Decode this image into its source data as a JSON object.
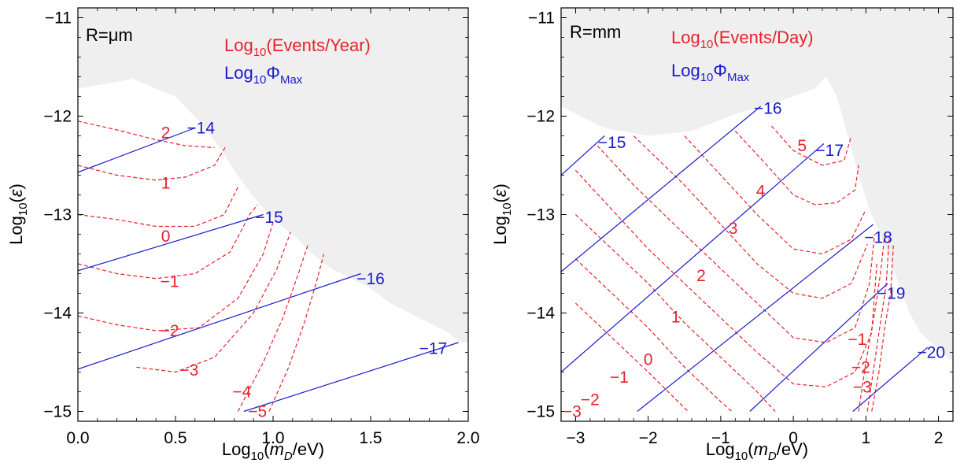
{
  "colors": {
    "events": "#e8212a",
    "phi": "#1a1acf",
    "excluded": "#efefef",
    "axis": "#000000"
  },
  "chart_data": [
    {
      "type": "contour",
      "panel_label": "R=μm",
      "xlabel": "Log₁₀(m_D/eV)",
      "ylabel": "Log₁₀(ε)",
      "xlim": [
        0.0,
        2.0
      ],
      "ylim": [
        -15.1,
        -10.9
      ],
      "xticks": [
        0.0,
        0.5,
        1.0,
        1.5,
        2.0
      ],
      "xtick_labels": [
        "0.0",
        "0.5",
        "1.0",
        "1.5",
        "2.0"
      ],
      "yticks": [
        -15,
        -14,
        -13,
        -12,
        -11
      ],
      "ytick_labels": [
        "−15",
        "−14",
        "−13",
        "−12",
        "−11"
      ],
      "grid": false,
      "legend": [
        {
          "label": "Log10(Events/Year)",
          "color": "#e8212a",
          "style": "dashed"
        },
        {
          "label": "Log10ΦMax",
          "color": "#1a1acf",
          "style": "solid"
        }
      ],
      "excluded_region_boundary": [
        [
          0,
          -11.72
        ],
        [
          0.18,
          -11.66
        ],
        [
          0.28,
          -11.62
        ],
        [
          0.4,
          -11.72
        ],
        [
          0.5,
          -11.8
        ],
        [
          0.62,
          -12.05
        ],
        [
          0.72,
          -12.3
        ],
        [
          0.8,
          -12.55
        ],
        [
          0.9,
          -12.82
        ],
        [
          1.0,
          -13.05
        ],
        [
          1.1,
          -13.2
        ],
        [
          1.2,
          -13.4
        ],
        [
          1.3,
          -13.55
        ],
        [
          1.4,
          -13.65
        ],
        [
          1.5,
          -13.75
        ],
        [
          1.6,
          -13.9
        ],
        [
          1.7,
          -14.0
        ],
        [
          1.8,
          -14.1
        ],
        [
          1.9,
          -14.2
        ],
        [
          1.94,
          -14.27
        ],
        [
          1.97,
          -14.3
        ]
      ],
      "series": [
        {
          "name": "2",
          "group": "events",
          "points": [
            [
              0,
              -12.05
            ],
            [
              0.2,
              -12.14
            ],
            [
              0.4,
              -12.24
            ],
            [
              0.55,
              -12.3
            ],
            [
              0.7,
              -12.32
            ]
          ],
          "label_at": [
            0.45,
            -12.17
          ]
        },
        {
          "name": "1",
          "group": "events",
          "points": [
            [
              0,
              -12.5
            ],
            [
              0.2,
              -12.6
            ],
            [
              0.4,
              -12.65
            ],
            [
              0.55,
              -12.62
            ],
            [
              0.7,
              -12.5
            ],
            [
              0.76,
              -12.3
            ]
          ],
          "label_at": [
            0.45,
            -12.68
          ]
        },
        {
          "name": "0",
          "group": "events",
          "points": [
            [
              0,
              -13.0
            ],
            [
              0.2,
              -13.05
            ],
            [
              0.4,
              -13.12
            ],
            [
              0.6,
              -13.12
            ],
            [
              0.75,
              -13.0
            ],
            [
              0.82,
              -12.72
            ]
          ],
          "label_at": [
            0.45,
            -13.22
          ]
        },
        {
          "name": "−1",
          "group": "events",
          "points": [
            [
              0,
              -13.5
            ],
            [
              0.2,
              -13.6
            ],
            [
              0.4,
              -13.65
            ],
            [
              0.6,
              -13.6
            ],
            [
              0.78,
              -13.38
            ],
            [
              0.88,
              -13.0
            ],
            [
              0.92,
              -12.9
            ]
          ],
          "label_at": [
            0.47,
            -13.68
          ]
        },
        {
          "name": "−2",
          "group": "events",
          "points": [
            [
              0,
              -14.03
            ],
            [
              0.2,
              -14.12
            ],
            [
              0.4,
              -14.18
            ],
            [
              0.62,
              -14.15
            ],
            [
              0.82,
              -13.85
            ],
            [
              0.95,
              -13.4
            ],
            [
              1.0,
              -13.08
            ]
          ],
          "label_at": [
            0.47,
            -14.18
          ]
        },
        {
          "name": "−3",
          "group": "events",
          "points": [
            [
              0.3,
              -14.55
            ],
            [
              0.5,
              -14.6
            ],
            [
              0.7,
              -14.45
            ],
            [
              0.9,
              -14.0
            ],
            [
              1.02,
              -13.55
            ],
            [
              1.09,
              -13.18
            ]
          ],
          "label_at": [
            0.57,
            -14.58
          ]
        },
        {
          "name": "−4",
          "group": "events",
          "points": [
            [
              0.82,
              -15.0
            ],
            [
              0.95,
              -14.5
            ],
            [
              1.05,
              -14.05
            ],
            [
              1.13,
              -13.6
            ],
            [
              1.18,
              -13.3
            ]
          ],
          "label_at": [
            0.84,
            -14.8
          ]
        },
        {
          "name": "−5",
          "group": "events",
          "points": [
            [
              0.98,
              -15.0
            ],
            [
              1.08,
              -14.55
            ],
            [
              1.16,
              -14.1
            ],
            [
              1.22,
              -13.7
            ],
            [
              1.26,
              -13.4
            ]
          ],
          "label_at": [
            0.92,
            -15.0
          ]
        },
        {
          "name": "−14",
          "group": "phi",
          "points": [
            [
              0,
              -12.57
            ],
            [
              0.6,
              -12.12
            ]
          ],
          "label_at": [
            0.63,
            -12.12
          ]
        },
        {
          "name": "−15",
          "group": "phi",
          "points": [
            [
              0,
              -13.57
            ],
            [
              0.95,
              -13.0
            ]
          ],
          "label_at": [
            0.98,
            -13.03
          ]
        },
        {
          "name": "−16",
          "group": "phi",
          "points": [
            [
              0,
              -14.57
            ],
            [
              1.45,
              -13.6
            ]
          ],
          "label_at": [
            1.5,
            -13.65
          ]
        },
        {
          "name": "−17",
          "group": "phi",
          "points": [
            [
              0.85,
              -15.0
            ],
            [
              1.95,
              -14.3
            ]
          ],
          "label_at": [
            1.82,
            -14.36
          ]
        }
      ]
    },
    {
      "type": "contour",
      "panel_label": "R=mm",
      "xlabel": "Log₁₀(m_D/eV)",
      "ylabel": "Log₁₀(ε)",
      "xlim": [
        -3.2,
        2.2
      ],
      "ylim": [
        -15.1,
        -10.9
      ],
      "xticks": [
        -3,
        -2,
        -1,
        0,
        1,
        2
      ],
      "xtick_labels": [
        "−3",
        "−2",
        "−1",
        "0",
        "1",
        "2"
      ],
      "yticks": [
        -15,
        -14,
        -13,
        -12,
        -11
      ],
      "ytick_labels": [
        "−15",
        "−14",
        "−13",
        "−12",
        "−11"
      ],
      "grid": false,
      "legend": [
        {
          "label": "Log10(Events/Day)",
          "color": "#e8212a",
          "style": "dashed"
        },
        {
          "label": "Log10ΦMax",
          "color": "#1a1acf",
          "style": "solid"
        }
      ],
      "excluded_region_boundary": [
        [
          -3.2,
          -11.9
        ],
        [
          -2.6,
          -12.12
        ],
        [
          -2.0,
          -12.2
        ],
        [
          -1.4,
          -12.15
        ],
        [
          -0.8,
          -11.98
        ],
        [
          -0.2,
          -11.85
        ],
        [
          0.3,
          -11.72
        ],
        [
          0.45,
          -11.6
        ],
        [
          0.6,
          -11.8
        ],
        [
          0.75,
          -12.2
        ],
        [
          0.9,
          -12.6
        ],
        [
          1.05,
          -12.95
        ],
        [
          1.2,
          -13.2
        ],
        [
          1.35,
          -13.5
        ],
        [
          1.5,
          -13.8
        ],
        [
          1.6,
          -14.0
        ],
        [
          1.75,
          -14.2
        ],
        [
          1.9,
          -14.3
        ],
        [
          2.05,
          -14.4
        ],
        [
          2.2,
          -14.5
        ]
      ],
      "series": [
        {
          "name": "5",
          "group": "events",
          "points": [
            [
              -0.3,
              -12.1
            ],
            [
              0,
              -12.35
            ],
            [
              0.4,
              -12.5
            ],
            [
              0.7,
              -12.45
            ],
            [
              0.8,
              -12.2
            ]
          ],
          "label_at": [
            0.12,
            -12.3
          ]
        },
        {
          "name": "4",
          "group": "events",
          "points": [
            [
              -0.8,
              -12.15
            ],
            [
              -0.3,
              -12.55
            ],
            [
              0,
              -12.8
            ],
            [
              0.3,
              -12.9
            ],
            [
              0.6,
              -12.88
            ],
            [
              0.85,
              -12.75
            ],
            [
              0.9,
              -12.5
            ]
          ],
          "label_at": [
            -0.45,
            -12.76
          ]
        },
        {
          "name": "3",
          "group": "events",
          "points": [
            [
              -1.5,
              -12.2
            ],
            [
              -1.0,
              -12.6
            ],
            [
              -0.5,
              -13.0
            ],
            [
              0,
              -13.35
            ],
            [
              0.4,
              -13.4
            ],
            [
              0.8,
              -13.25
            ],
            [
              1.0,
              -12.95
            ]
          ],
          "label_at": [
            -0.83,
            -13.14
          ]
        },
        {
          "name": "2",
          "group": "events",
          "points": [
            [
              -2.2,
              -12.2
            ],
            [
              -1.5,
              -12.7
            ],
            [
              -1.0,
              -13.1
            ],
            [
              -0.5,
              -13.5
            ],
            [
              0,
              -13.8
            ],
            [
              0.4,
              -13.85
            ],
            [
              0.8,
              -13.7
            ],
            [
              1.02,
              -13.3
            ]
          ],
          "label_at": [
            -1.27,
            -13.62
          ]
        },
        {
          "name": "1",
          "group": "events",
          "points": [
            [
              -2.7,
              -12.3
            ],
            [
              -2.2,
              -12.7
            ],
            [
              -1.5,
              -13.2
            ],
            [
              -1.0,
              -13.55
            ],
            [
              -0.5,
              -13.9
            ],
            [
              0,
              -14.25
            ],
            [
              0.45,
              -14.3
            ],
            [
              0.85,
              -14.15
            ],
            [
              1.05,
              -13.7
            ],
            [
              1.12,
              -13.2
            ]
          ],
          "label_at": [
            -1.62,
            -14.04
          ]
        },
        {
          "name": "0",
          "group": "events",
          "points": [
            [
              -3.0,
              -12.55
            ],
            [
              -2.5,
              -12.95
            ],
            [
              -2.0,
              -13.35
            ],
            [
              -1.5,
              -13.7
            ],
            [
              -1.0,
              -14.05
            ],
            [
              -0.5,
              -14.4
            ],
            [
              0,
              -14.72
            ],
            [
              0.45,
              -14.75
            ],
            [
              0.85,
              -14.6
            ],
            [
              1.08,
              -14.2
            ],
            [
              1.15,
              -13.5
            ]
          ],
          "label_at": [
            -2.0,
            -14.47
          ]
        },
        {
          "name": "−1",
          "group": "events",
          "points": [
            [
              -3.0,
              -13.0
            ],
            [
              -2.5,
              -13.35
            ],
            [
              -2.0,
              -13.7
            ],
            [
              -1.5,
              -14.1
            ],
            [
              -1.0,
              -14.45
            ],
            [
              -0.5,
              -14.8
            ],
            [
              -0.25,
              -15.0
            ]
          ],
          "label_at": [
            -2.4,
            -14.65
          ]
        },
        {
          "name": "−2",
          "group": "events",
          "points": [
            [
              -3.0,
              -13.45
            ],
            [
              -2.5,
              -13.8
            ],
            [
              -2.0,
              -14.15
            ],
            [
              -1.5,
              -14.55
            ],
            [
              -1.0,
              -14.9
            ],
            [
              -0.85,
              -15.0
            ]
          ],
          "label_at": [
            -2.8,
            -14.88
          ]
        },
        {
          "name": "−3",
          "group": "events",
          "points": [
            [
              -3.0,
              -13.9
            ],
            [
              -2.5,
              -14.25
            ],
            [
              -2.0,
              -14.6
            ],
            [
              -1.45,
              -15.0
            ]
          ],
          "label_at": [
            -3.05,
            -15.0
          ]
        },
        {
          "name": "−1",
          "group": "events",
          "points": [
            [
              0.9,
              -15.0
            ],
            [
              1.0,
              -14.5
            ],
            [
              1.12,
              -14.0
            ],
            [
              1.2,
              -13.6
            ],
            [
              1.26,
              -13.2
            ]
          ],
          "label_at": [
            0.88,
            -14.27
          ]
        },
        {
          "name": "−2",
          "group": "events",
          "points": [
            [
              1.02,
              -15.0
            ],
            [
              1.1,
              -14.6
            ],
            [
              1.2,
              -14.1
            ],
            [
              1.28,
              -13.7
            ],
            [
              1.32,
              -13.25
            ]
          ],
          "label_at": [
            0.93,
            -14.55
          ]
        },
        {
          "name": "−3",
          "group": "events",
          "points": [
            [
              1.08,
              -15.0
            ],
            [
              1.18,
              -14.6
            ],
            [
              1.26,
              -14.15
            ],
            [
              1.34,
              -13.8
            ],
            [
              1.38,
              -13.3
            ]
          ],
          "label_at": [
            0.95,
            -14.75
          ]
        },
        {
          "name": "−15",
          "group": "phi",
          "points": [
            [
              -3.2,
              -12.6
            ],
            [
              -2.6,
              -12.2
            ]
          ],
          "label_at": [
            -2.5,
            -12.27
          ]
        },
        {
          "name": "−16",
          "group": "phi",
          "points": [
            [
              -3.2,
              -13.58
            ],
            [
              -0.45,
              -11.9
            ]
          ],
          "label_at": [
            -0.35,
            -11.92
          ]
        },
        {
          "name": "−17",
          "group": "phi",
          "points": [
            [
              -3.2,
              -14.6
            ],
            [
              0.42,
              -12.28
            ]
          ],
          "label_at": [
            0.5,
            -12.35
          ]
        },
        {
          "name": "−18",
          "group": "phi",
          "points": [
            [
              -2.15,
              -15.0
            ],
            [
              1.1,
              -13.1
            ]
          ],
          "label_at": [
            1.17,
            -13.23
          ]
        },
        {
          "name": "−19",
          "group": "phi",
          "points": [
            [
              -0.6,
              -15.0
            ],
            [
              1.3,
              -13.7
            ]
          ],
          "label_at": [
            1.35,
            -13.8
          ]
        },
        {
          "name": "−20",
          "group": "phi",
          "points": [
            [
              0.82,
              -15.0
            ],
            [
              1.85,
              -14.35
            ]
          ],
          "label_at": [
            1.9,
            -14.4
          ]
        }
      ]
    }
  ]
}
